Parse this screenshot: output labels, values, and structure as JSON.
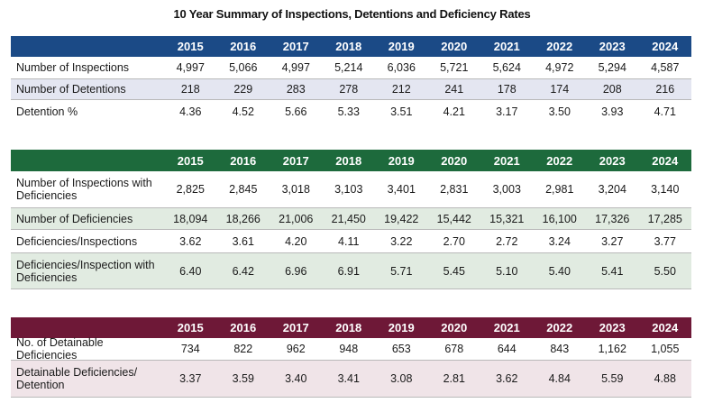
{
  "title": "10 Year Summary of Inspections, Detentions and Deficiency Rates",
  "years": [
    "2015",
    "2016",
    "2017",
    "2018",
    "2019",
    "2020",
    "2021",
    "2022",
    "2023",
    "2024"
  ],
  "tables": [
    {
      "rows": [
        {
          "label": "Number of Inspections",
          "values": [
            "4,997",
            "5,066",
            "4,997",
            "5,214",
            "6,036",
            "5,721",
            "5,624",
            "4,972",
            "5,294",
            "4,587"
          ]
        },
        {
          "label": "Number of Detentions",
          "values": [
            "218",
            "229",
            "283",
            "278",
            "212",
            "241",
            "178",
            "174",
            "208",
            "216"
          ]
        },
        {
          "label": "Detention %",
          "values": [
            "4.36",
            "4.52",
            "5.66",
            "5.33",
            "3.51",
            "4.21",
            "3.17",
            "3.50",
            "3.93",
            "4.71"
          ]
        }
      ]
    },
    {
      "rows": [
        {
          "label": "Number of Inspections with Deficiencies",
          "values": [
            "2,825",
            "2,845",
            "3,018",
            "3,103",
            "3,401",
            "2,831",
            "3,003",
            "2,981",
            "3,204",
            "3,140"
          ]
        },
        {
          "label": "Number of Deficiencies",
          "values": [
            "18,094",
            "18,266",
            "21,006",
            "21,450",
            "19,422",
            "15,442",
            "15,321",
            "16,100",
            "17,326",
            "17,285"
          ]
        },
        {
          "label": "Deficiencies/Inspections",
          "values": [
            "3.62",
            "3.61",
            "4.20",
            "4.11",
            "3.22",
            "2.70",
            "2.72",
            "3.24",
            "3.27",
            "3.77"
          ]
        },
        {
          "label": "Deficiencies/Inspection with Deficiencies",
          "values": [
            "6.40",
            "6.42",
            "6.96",
            "6.91",
            "5.71",
            "5.45",
            "5.10",
            "5.40",
            "5.41",
            "5.50"
          ]
        }
      ]
    },
    {
      "rows": [
        {
          "label": "No. of Detainable Deficiencies",
          "values": [
            "734",
            "822",
            "962",
            "948",
            "653",
            "678",
            "644",
            "843",
            "1,162",
            "1,055"
          ]
        },
        {
          "label": "Detainable Deficiencies/ Detention",
          "values": [
            "3.37",
            "3.59",
            "3.40",
            "3.41",
            "3.08",
            "2.81",
            "3.62",
            "4.84",
            "5.59",
            "4.88"
          ]
        }
      ]
    }
  ],
  "colors": {
    "table1_header": "#1b4a86",
    "table2_header": "#1d6a3c",
    "table3_header": "#6e1837"
  }
}
